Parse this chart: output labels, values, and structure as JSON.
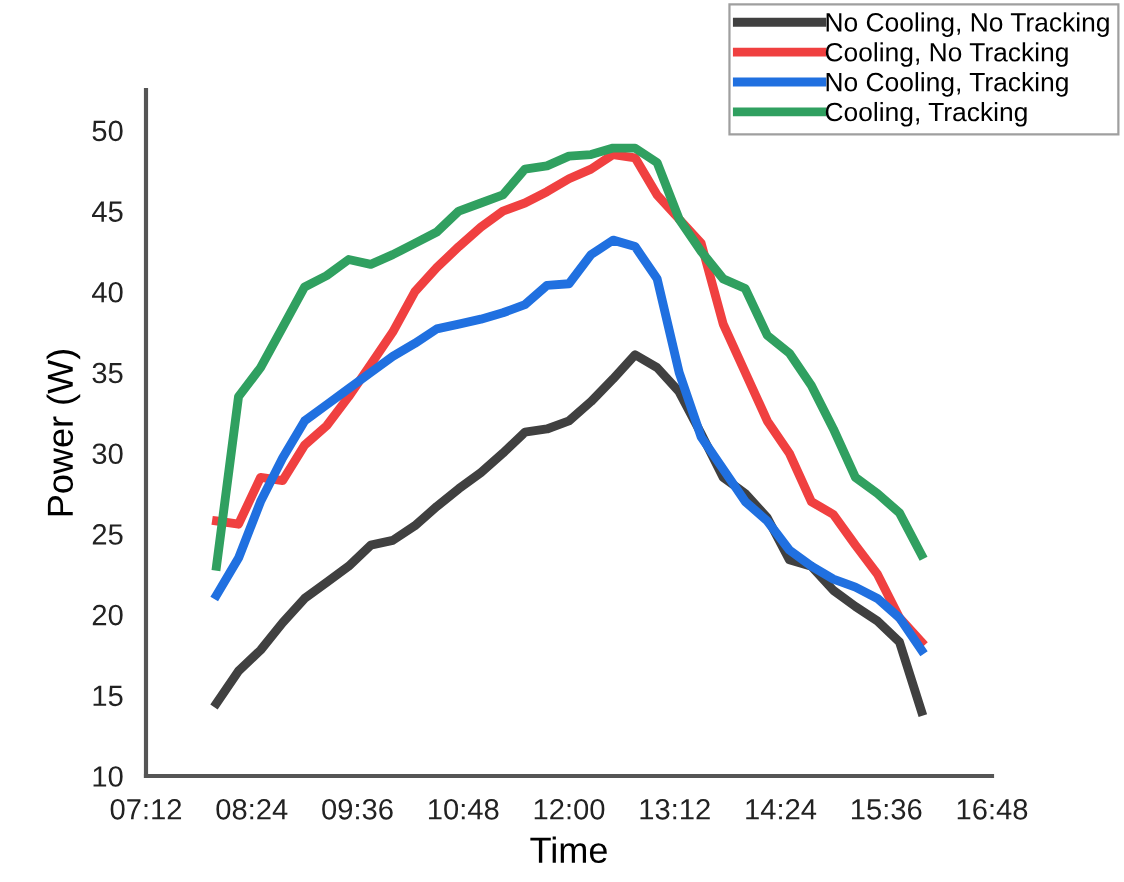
{
  "chart_data": {
    "type": "line",
    "xlabel": "Time",
    "ylabel": "Power (W)",
    "x": [
      8.0,
      8.25,
      8.5,
      8.75,
      9.0,
      9.25,
      9.5,
      9.75,
      10.0,
      10.25,
      10.5,
      10.75,
      11.0,
      11.25,
      11.5,
      11.75,
      12.0,
      12.25,
      12.5,
      12.75,
      13.0,
      13.25,
      13.5,
      13.75,
      14.0,
      14.25,
      14.5,
      14.75,
      15.0,
      15.25,
      15.5,
      15.75,
      16.0
    ],
    "series": [
      {
        "name": "No Cooling, No Tracking",
        "color": "#404040",
        "values": [
          14.5,
          16.5,
          17.8,
          19.5,
          21.0,
          22.0,
          23.0,
          24.3,
          24.6,
          25.5,
          26.7,
          27.8,
          28.8,
          30.0,
          31.3,
          31.5,
          32.0,
          33.2,
          34.6,
          36.1,
          35.3,
          33.8,
          31.2,
          28.5,
          27.5,
          26.0,
          23.4,
          23.0,
          21.5,
          20.5,
          19.6,
          18.3,
          14.0
        ]
      },
      {
        "name": "Cooling, No Tracking",
        "color": "#f04040",
        "values": [
          25.8,
          25.6,
          28.5,
          28.3,
          30.5,
          31.7,
          33.5,
          35.5,
          37.5,
          40.0,
          41.5,
          42.8,
          44.0,
          45.0,
          45.5,
          46.2,
          47.0,
          47.6,
          48.5,
          48.3,
          46.0,
          44.5,
          43.0,
          38.0,
          35.0,
          32.0,
          30.0,
          27.0,
          26.2,
          24.3,
          22.5,
          19.8,
          18.3
        ]
      },
      {
        "name": "No Cooling, Tracking",
        "color": "#2070e0",
        "values": [
          21.2,
          23.5,
          27.0,
          29.7,
          32.0,
          33.0,
          34.0,
          35.0,
          36.0,
          36.8,
          37.7,
          38.0,
          38.3,
          38.7,
          39.2,
          40.4,
          40.5,
          42.3,
          43.2,
          42.8,
          40.8,
          35.0,
          31.0,
          29.0,
          27.0,
          25.8,
          24.0,
          23.0,
          22.2,
          21.7,
          21.0,
          19.8,
          17.8
        ]
      },
      {
        "name": "Cooling, Tracking",
        "color": "#30a060",
        "values": [
          23.0,
          33.5,
          35.3,
          37.8,
          40.3,
          41.0,
          42.0,
          41.7,
          42.3,
          43.0,
          43.7,
          45.0,
          45.5,
          46.0,
          47.6,
          47.8,
          48.4,
          48.5,
          48.9,
          48.9,
          48.0,
          44.5,
          42.5,
          40.8,
          40.2,
          37.3,
          36.2,
          34.2,
          31.5,
          28.5,
          27.5,
          26.3,
          23.7
        ]
      }
    ],
    "xlim": [
      7.2,
      16.8
    ],
    "xticks": [
      {
        "value": 7.2,
        "label": "07:12"
      },
      {
        "value": 8.4,
        "label": "08:24"
      },
      {
        "value": 9.6,
        "label": "09:36"
      },
      {
        "value": 10.8,
        "label": "10:48"
      },
      {
        "value": 12.0,
        "label": "12:00"
      },
      {
        "value": 13.2,
        "label": "13:12"
      },
      {
        "value": 14.4,
        "label": "14:24"
      },
      {
        "value": 15.6,
        "label": "15:36"
      },
      {
        "value": 16.8,
        "label": "16:48"
      }
    ],
    "ylim": [
      10,
      52.5
    ],
    "yticks": [
      10,
      15,
      20,
      25,
      30,
      35,
      40,
      45,
      50
    ],
    "grid": false,
    "legend": "top right",
    "marker": "none",
    "line_style": "solid"
  }
}
